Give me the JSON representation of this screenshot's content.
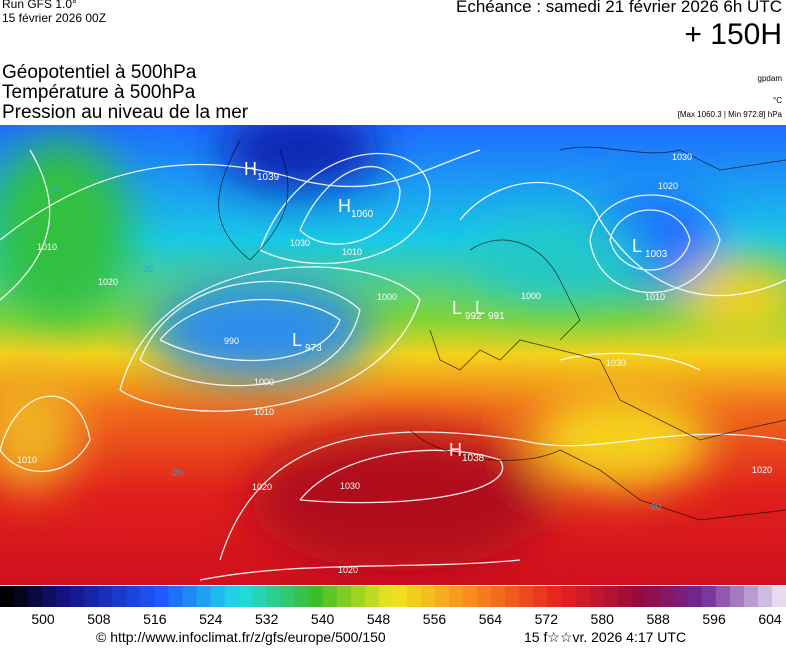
{
  "header": {
    "run": "Run GFS 1.0°",
    "date": "15 février 2026 00Z",
    "echeance": "Echéance : samedi 21 février 2026 6h UTC",
    "lead": "+ 150H",
    "titles": [
      "Géopotentiel à 500hPa",
      "Température à 500hPa",
      "Pression au niveau de la mer"
    ],
    "units": [
      "gpdam",
      "°C",
      "[Max 1060.3 | Min 972.8] hPa"
    ]
  },
  "map": {
    "centers": [
      {
        "letter": "H",
        "value": "1039"
      },
      {
        "letter": "H",
        "value": "1060"
      },
      {
        "letter": "L",
        "value": "1003"
      },
      {
        "letter": "L",
        "value": "973"
      },
      {
        "letter": "H",
        "value": "1038"
      },
      {
        "letter": "L",
        "value": "992"
      },
      {
        "letter": "L",
        "value": "991"
      }
    ],
    "isobar_labels": [
      "1030",
      "1020",
      "1010",
      "1000",
      "1030",
      "1010",
      "1000",
      "990",
      "1000",
      "1010",
      "1010",
      "1020",
      "1020",
      "1030",
      "1020",
      "1020",
      "1010",
      "1030"
    ],
    "temperature_labels": [
      "-30",
      "-30",
      "-20",
      "-20"
    ]
  },
  "colorbar": {
    "labels": [
      "500",
      "508",
      "516",
      "524",
      "532",
      "540",
      "548",
      "556",
      "564",
      "572",
      "580",
      "588",
      "596",
      "604"
    ]
  },
  "footer": {
    "url": "© http://www.infoclimat.fr/z/gfs/europe/500/150",
    "time": "15 f☆☆vr. 2026  4:17 UTC"
  }
}
